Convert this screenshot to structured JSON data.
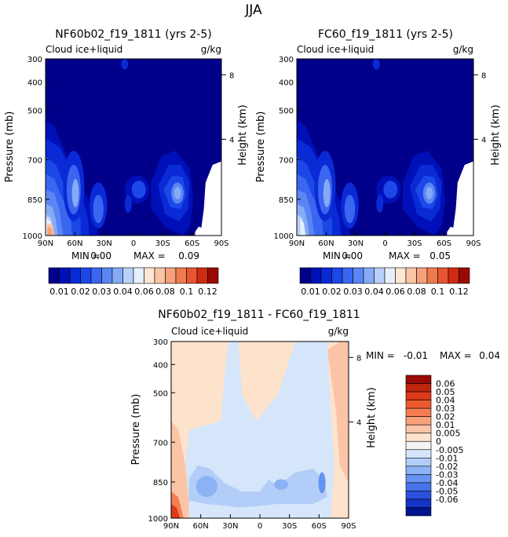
{
  "figure_title": "JJA",
  "chart_data": [
    {
      "type": "heatmap",
      "title": "NF60b02_f19_1811 (yrs 2-5)",
      "subtitle_left": "Cloud ice+liquid",
      "subtitle_right": "g/kg",
      "ylabel": "Pressure (mb)",
      "ylabel_right": "Height (km)",
      "x_ticks": [
        "90N",
        "60N",
        "30N",
        "0",
        "30S",
        "60S",
        "90S"
      ],
      "y_ticks": [
        "300",
        "400",
        "500",
        "700",
        "850",
        "1000"
      ],
      "y_ticks_right": [
        "8",
        "4"
      ],
      "stats": {
        "min_label": "MIN =",
        "min": "0.00",
        "max_label": "MAX =",
        "max": "0.09"
      }
    },
    {
      "type": "heatmap",
      "title": "FC60_f19_1811 (yrs 2-5)",
      "subtitle_left": "Cloud ice+liquid",
      "subtitle_right": "g/kg",
      "ylabel": "Pressure (mb)",
      "ylabel_right": "Height (km)",
      "x_ticks": [
        "90N",
        "60N",
        "30N",
        "0",
        "30S",
        "60S",
        "90S"
      ],
      "y_ticks": [
        "300",
        "400",
        "500",
        "700",
        "850",
        "1000"
      ],
      "y_ticks_right": [
        "8",
        "4"
      ],
      "stats": {
        "min_label": "MIN =",
        "min": "0.00",
        "max_label": "MAX =",
        "max": "0.05"
      }
    },
    {
      "type": "heatmap",
      "title": "NF60b02_f19_1811 - FC60_f19_1811",
      "subtitle_left": "Cloud ice+liquid",
      "subtitle_right": "g/kg",
      "ylabel": "Pressure (mb)",
      "ylabel_right": "Height (km)",
      "x_ticks": [
        "90N",
        "60N",
        "30N",
        "0",
        "30S",
        "60S",
        "90S"
      ],
      "y_ticks": [
        "300",
        "400",
        "500",
        "700",
        "850",
        "1000"
      ],
      "y_ticks_right": [
        "8",
        "4"
      ],
      "stats": {
        "min_label": "MIN =",
        "min": "-0.01",
        "max_label": "MAX =",
        "max": "0.04"
      }
    }
  ],
  "colorbar_abs": {
    "labels": [
      "0.01",
      "0.02",
      "0.03",
      "0.04",
      "0.06",
      "0.08",
      "0.1",
      "0.12"
    ],
    "colors": [
      "#00008a",
      "#0010b8",
      "#0a2ad6",
      "#1c48e8",
      "#3a66f0",
      "#5a86f4",
      "#86aaf6",
      "#b8d0fa",
      "#e6f0fc",
      "#fde6d2",
      "#f9c4a6",
      "#f5a07a",
      "#f07a50",
      "#e85530",
      "#cf2a12",
      "#9a0a04"
    ]
  },
  "colorbar_diff": {
    "labels": [
      "0.06",
      "0.05",
      "0.04",
      "0.03",
      "0.02",
      "0.01",
      "0.005",
      "0",
      "-0.005",
      "-0.01",
      "-0.02",
      "-0.03",
      "-0.04",
      "-0.05",
      "-0.06"
    ],
    "colors": [
      "#9a0a04",
      "#c0240e",
      "#dc3a1a",
      "#ee5a30",
      "#f47e52",
      "#f8a27c",
      "#fbc4a6",
      "#fde2cc",
      "#f4f4f4",
      "#d6e6fa",
      "#b2cef8",
      "#8cb2f6",
      "#6694f2",
      "#4674ea",
      "#2a52dc",
      "#1434c4",
      "#00148f"
    ]
  }
}
